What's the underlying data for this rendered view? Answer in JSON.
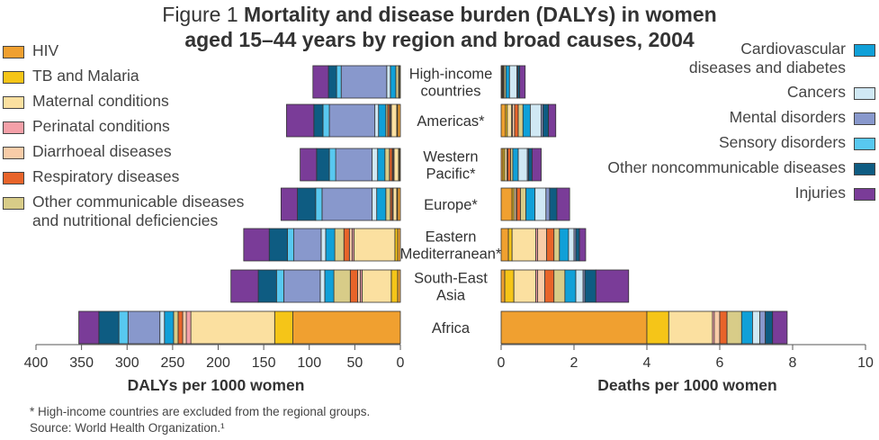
{
  "title": {
    "prefix": "Figure 1",
    "line1": "Mortality and disease burden (DALYs) in women",
    "line2": "aged 15–44 years by region and broad causes, 2004"
  },
  "footnotes": {
    "note": "* High-income countries are excluded from the regional groups.",
    "source": "Source: World Health Organization.¹"
  },
  "chart_data": {
    "type": "bar",
    "orientation": "horizontal",
    "stacked": true,
    "categories": [
      "High-income countries",
      "Americas*",
      "Western Pacific*",
      "Europe*",
      "Eastern Mediterranean*",
      "South-East Asia",
      "Africa"
    ],
    "category_labels": [
      [
        "High-income",
        "countries"
      ],
      [
        "Americas*"
      ],
      [
        "Western",
        "Pacific*"
      ],
      [
        "Europe*"
      ],
      [
        "Eastern",
        "Mediterranean*"
      ],
      [
        "South-East",
        "Asia"
      ],
      [
        "Africa"
      ]
    ],
    "series_names": [
      "HIV",
      "TB and Malaria",
      "Maternal conditions",
      "Perinatal conditions",
      "Diarrhoeal diseases",
      "Respiratory diseases",
      "Other communicable diseases and nutritional deficiencies",
      "Cardiovascular diseases and diabetes",
      "Cancers",
      "Mental disorders",
      "Sensory disorders",
      "Other noncommunicable diseases",
      "Injuries"
    ],
    "series_colors": [
      "#F0A030",
      "#F5C518",
      "#FBE0A0",
      "#F4A0A8",
      "#F8CCA8",
      "#E8642A",
      "#D8CC88",
      "#10A0D8",
      "#D0E8F4",
      "#8898CC",
      "#58C8F0",
      "#0E5C82",
      "#7A3C98"
    ],
    "legend_left": [
      {
        "label": "HIV",
        "color": "#F0A030"
      },
      {
        "label": "TB and Malaria",
        "color": "#F5C518"
      },
      {
        "label": "Maternal conditions",
        "color": "#FBE0A0"
      },
      {
        "label": "Perinatal conditions",
        "color": "#F4A0A8"
      },
      {
        "label": "Diarrhoeal diseases",
        "color": "#F8CCA8"
      },
      {
        "label": "Respiratory diseases",
        "color": "#E8642A"
      },
      {
        "label": "Other communicable diseases\nand nutritional deficiencies",
        "color": "#D8CC88"
      }
    ],
    "legend_right": [
      {
        "label": "Cardiovascular\ndiseases and diabetes",
        "color": "#10A0D8"
      },
      {
        "label": "Cancers",
        "color": "#D0E8F4"
      },
      {
        "label": "Mental disorders",
        "color": "#8898CC"
      },
      {
        "label": "Sensory disorders",
        "color": "#58C8F0"
      },
      {
        "label": "Other noncommunicable diseases",
        "color": "#0E5C82"
      },
      {
        "label": "Injuries",
        "color": "#7A3C98"
      }
    ],
    "dalys": {
      "xlabel": "DALYs per 1000 women",
      "xlim": [
        0,
        400
      ],
      "reversed": true,
      "ticks": [
        0,
        50,
        100,
        150,
        200,
        250,
        300,
        350,
        400
      ],
      "values": [
        [
          0,
          1,
          1,
          0,
          0,
          0,
          3,
          6,
          4,
          50,
          5,
          9,
          17
        ],
        [
          3,
          1,
          6,
          1,
          1,
          2,
          2,
          8,
          4,
          50,
          7,
          10,
          30
        ],
        [
          1,
          1,
          5,
          1,
          1,
          3,
          5,
          8,
          6,
          40,
          7,
          14,
          18
        ],
        [
          3,
          1,
          4,
          0,
          1,
          2,
          5,
          10,
          5,
          55,
          7,
          20,
          18
        ],
        [
          3,
          3,
          45,
          2,
          3,
          6,
          10,
          10,
          5,
          30,
          7,
          20,
          28
        ],
        [
          3,
          7,
          32,
          2,
          3,
          8,
          18,
          10,
          5,
          40,
          8,
          20,
          30
        ],
        [
          118,
          20,
          92,
          5,
          4,
          5,
          5,
          10,
          5,
          35,
          10,
          22,
          22
        ]
      ]
    },
    "deaths": {
      "xlabel": "Deaths per 1000 women",
      "xlim": [
        0,
        10
      ],
      "ticks": [
        0,
        2,
        4,
        6,
        8,
        10
      ],
      "values": [
        [
          0.02,
          0.02,
          0.02,
          0.0,
          0.0,
          0.02,
          0.05,
          0.1,
          0.2,
          0.03,
          0.0,
          0.05,
          0.15
        ],
        [
          0.12,
          0.05,
          0.12,
          0.02,
          0.06,
          0.1,
          0.13,
          0.2,
          0.3,
          0.05,
          0.0,
          0.15,
          0.2
        ],
        [
          0.05,
          0.05,
          0.06,
          0.0,
          0.02,
          0.08,
          0.06,
          0.15,
          0.25,
          0.03,
          0.0,
          0.1,
          0.25
        ],
        [
          0.3,
          0.05,
          0.05,
          0.0,
          0.03,
          0.1,
          0.15,
          0.25,
          0.3,
          0.1,
          0.0,
          0.2,
          0.35
        ],
        [
          0.2,
          0.1,
          0.65,
          0.05,
          0.25,
          0.2,
          0.15,
          0.25,
          0.15,
          0.05,
          0.0,
          0.1,
          0.17
        ],
        [
          0.1,
          0.25,
          0.6,
          0.05,
          0.2,
          0.25,
          0.3,
          0.3,
          0.2,
          0.05,
          0.0,
          0.3,
          0.9
        ],
        [
          4.0,
          0.6,
          1.2,
          0.05,
          0.15,
          0.2,
          0.4,
          0.3,
          0.2,
          0.15,
          0.0,
          0.2,
          0.4
        ]
      ]
    }
  }
}
